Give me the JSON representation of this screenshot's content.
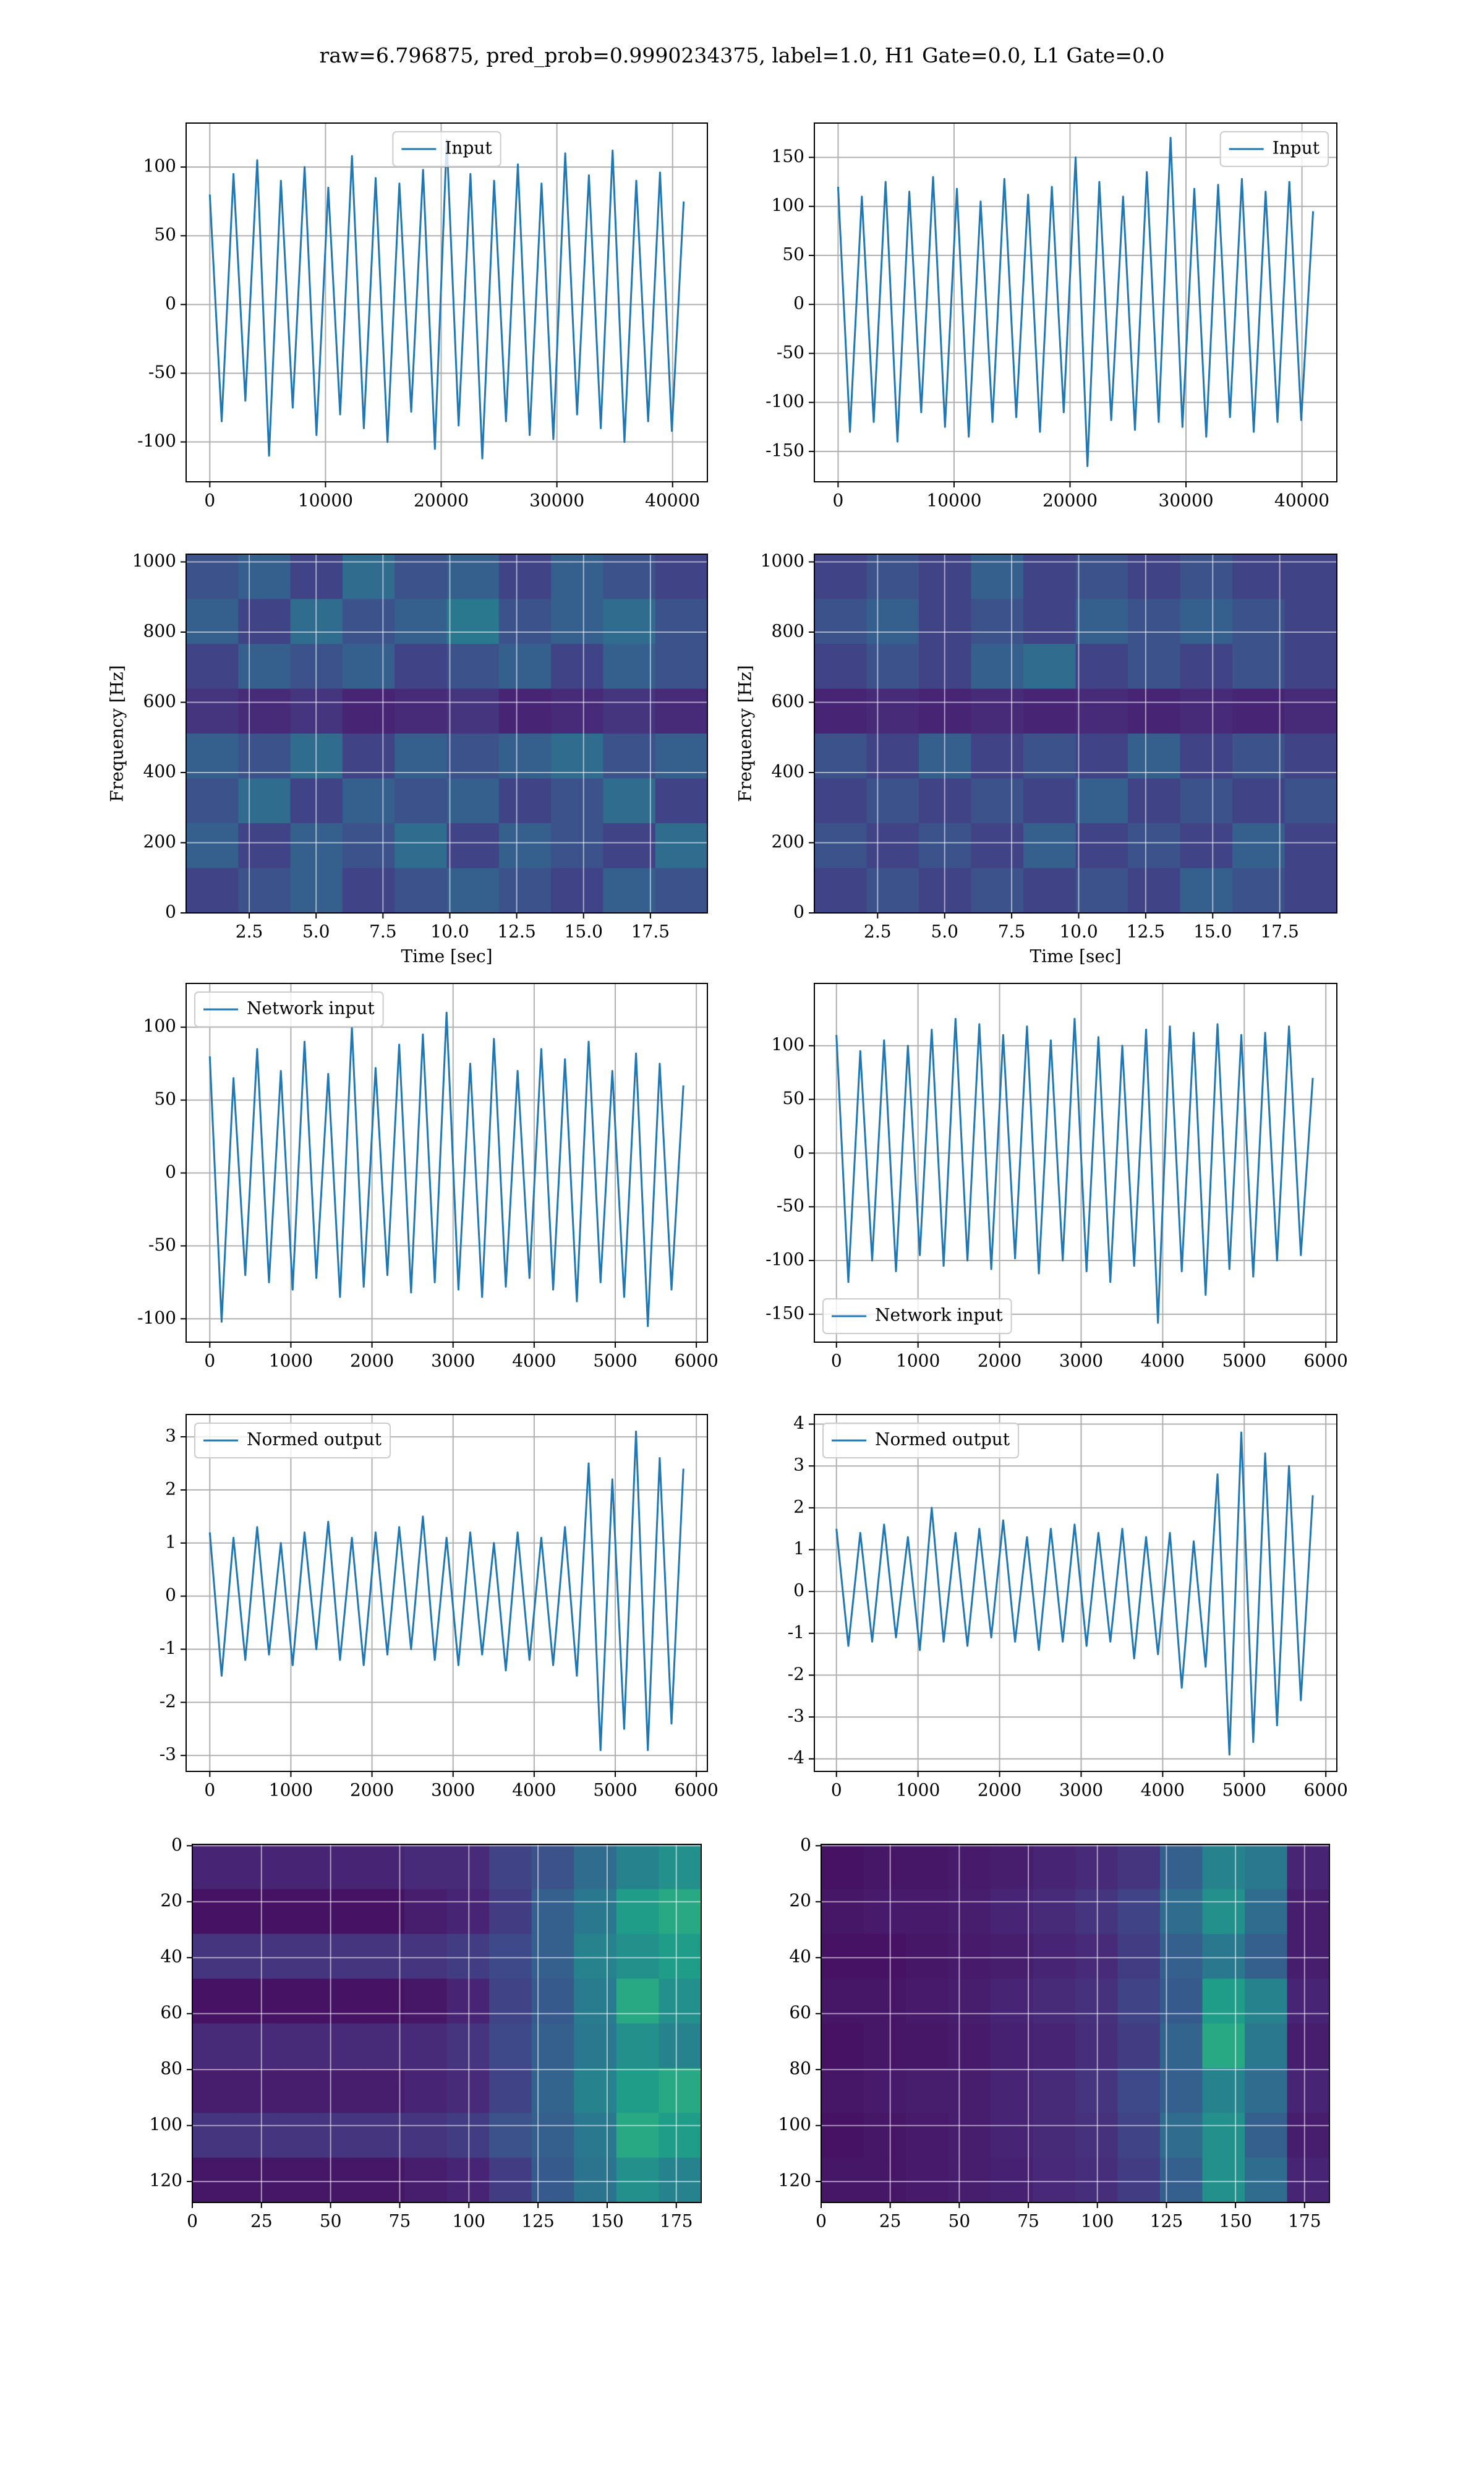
{
  "title": "raw=6.796875, pred_prob=0.9990234375, label=1.0, H1 Gate=0.0, L1 Gate=0.0",
  "chart_data": [
    {
      "type": "line",
      "legend": "upper center",
      "grid": true,
      "xlim": [
        -2048,
        43008
      ],
      "xticks": [
        0,
        10000,
        20000,
        30000,
        40000
      ],
      "ylim": [
        -129,
        132
      ],
      "yticks": [
        -100,
        -50,
        0,
        50,
        100
      ],
      "x": [
        0,
        1024,
        2048,
        3072,
        4096,
        5120,
        6144,
        7168,
        8192,
        9216,
        10240,
        11264,
        12288,
        13312,
        14336,
        15360,
        16384,
        17408,
        18432,
        19456,
        20480,
        21504,
        22528,
        23552,
        24576,
        25600,
        26624,
        27648,
        28672,
        29696,
        30720,
        31744,
        32768,
        33792,
        34816,
        35840,
        36864,
        37888,
        38912,
        39936,
        40960
      ],
      "series": [
        {
          "name": "Input",
          "color": "#1f77b4",
          "values": [
            80,
            -85,
            95,
            -70,
            105,
            -110,
            90,
            -75,
            100,
            -95,
            85,
            -80,
            108,
            -90,
            92,
            -100,
            88,
            -78,
            98,
            -105,
            120,
            -88,
            95,
            -112,
            90,
            -85,
            102,
            -95,
            88,
            -98,
            110,
            -80,
            94,
            -90,
            112,
            -100,
            90,
            -85,
            96,
            -92,
            75
          ]
        }
      ]
    },
    {
      "type": "line",
      "legend": "upper right",
      "grid": true,
      "xlim": [
        -2048,
        43008
      ],
      "xticks": [
        0,
        10000,
        20000,
        30000,
        40000
      ],
      "ylim": [
        -181,
        185
      ],
      "yticks": [
        -150,
        -100,
        -50,
        0,
        50,
        100,
        150
      ],
      "x": [
        0,
        1024,
        2048,
        3072,
        4096,
        5120,
        6144,
        7168,
        8192,
        9216,
        10240,
        11264,
        12288,
        13312,
        14336,
        15360,
        16384,
        17408,
        18432,
        19456,
        20480,
        21504,
        22528,
        23552,
        24576,
        25600,
        26624,
        27648,
        28672,
        29696,
        30720,
        31744,
        32768,
        33792,
        34816,
        35840,
        36864,
        37888,
        38912,
        39936,
        40960
      ],
      "series": [
        {
          "name": "Input",
          "color": "#1f77b4",
          "values": [
            120,
            -130,
            110,
            -120,
            125,
            -140,
            115,
            -110,
            130,
            -125,
            118,
            -135,
            105,
            -120,
            128,
            -115,
            112,
            -130,
            120,
            -110,
            150,
            -165,
            125,
            -118,
            110,
            -128,
            135,
            -120,
            170,
            -125,
            118,
            -135,
            122,
            -115,
            128,
            -130,
            115,
            -120,
            125,
            -118,
            95
          ]
        }
      ]
    },
    {
      "type": "heatmap",
      "cmap": "viridis",
      "grid": true,
      "xlabel": "Time [sec]",
      "ylabel": "Frequency [Hz]",
      "xlim": [
        0.14,
        19.63
      ],
      "xticks": [
        2.5,
        {
          "value": 5,
          "label": "5.0"
        },
        7.5,
        {
          "value": 10,
          "label": "10.0"
        },
        12.5,
        {
          "value": 15,
          "label": "15.0"
        },
        17.5
      ],
      "ylim": [
        0,
        1022
      ],
      "yticks": [
        0,
        200,
        400,
        600,
        800,
        1000
      ],
      "z": [
        [
          0.25,
          0.3,
          0.2,
          0.35,
          0.25,
          0.3,
          0.2,
          0.3,
          0.25,
          0.2
        ],
        [
          0.3,
          0.2,
          0.35,
          0.25,
          0.3,
          0.4,
          0.25,
          0.3,
          0.35,
          0.25
        ],
        [
          0.2,
          0.3,
          0.25,
          0.3,
          0.2,
          0.25,
          0.3,
          0.2,
          0.3,
          0.25
        ],
        [
          0.15,
          0.12,
          0.15,
          0.1,
          0.12,
          0.15,
          0.1,
          0.12,
          0.15,
          0.12
        ],
        [
          0.3,
          0.25,
          0.35,
          0.2,
          0.3,
          0.25,
          0.3,
          0.35,
          0.25,
          0.3
        ],
        [
          0.25,
          0.35,
          0.2,
          0.3,
          0.25,
          0.3,
          0.2,
          0.25,
          0.35,
          0.2
        ],
        [
          0.3,
          0.2,
          0.3,
          0.25,
          0.35,
          0.2,
          0.3,
          0.25,
          0.2,
          0.35
        ],
        [
          0.2,
          0.25,
          0.3,
          0.2,
          0.25,
          0.3,
          0.25,
          0.2,
          0.3,
          0.25
        ]
      ]
    },
    {
      "type": "heatmap",
      "cmap": "viridis",
      "grid": true,
      "xlabel": "Time [sec]",
      "ylabel": "Frequency [Hz]",
      "xlim": [
        0.14,
        19.63
      ],
      "xticks": [
        2.5,
        {
          "value": 5,
          "label": "5.0"
        },
        7.5,
        {
          "value": 10,
          "label": "10.0"
        },
        12.5,
        {
          "value": 15,
          "label": "15.0"
        },
        17.5
      ],
      "ylim": [
        0,
        1022
      ],
      "yticks": [
        0,
        200,
        400,
        600,
        800,
        1000
      ],
      "z": [
        [
          0.2,
          0.25,
          0.2,
          0.3,
          0.2,
          0.25,
          0.2,
          0.25,
          0.2,
          0.2
        ],
        [
          0.25,
          0.3,
          0.2,
          0.25,
          0.2,
          0.3,
          0.25,
          0.3,
          0.25,
          0.2
        ],
        [
          0.2,
          0.25,
          0.2,
          0.3,
          0.35,
          0.2,
          0.25,
          0.2,
          0.25,
          0.2
        ],
        [
          0.1,
          0.12,
          0.1,
          0.12,
          0.1,
          0.12,
          0.1,
          0.12,
          0.1,
          0.12
        ],
        [
          0.25,
          0.2,
          0.3,
          0.2,
          0.25,
          0.2,
          0.3,
          0.2,
          0.25,
          0.2
        ],
        [
          0.2,
          0.25,
          0.2,
          0.25,
          0.2,
          0.3,
          0.2,
          0.25,
          0.2,
          0.25
        ],
        [
          0.25,
          0.2,
          0.25,
          0.2,
          0.3,
          0.2,
          0.25,
          0.2,
          0.3,
          0.2
        ],
        [
          0.2,
          0.25,
          0.2,
          0.25,
          0.2,
          0.25,
          0.2,
          0.3,
          0.25,
          0.2
        ]
      ]
    },
    {
      "type": "line",
      "legend": "upper left",
      "grid": true,
      "xlim": [
        -292,
        6136
      ],
      "xticks": [
        0,
        1000,
        2000,
        3000,
        4000,
        5000,
        6000
      ],
      "ylim": [
        -116,
        130
      ],
      "yticks": [
        -100,
        -50,
        0,
        50,
        100
      ],
      "x": [
        0,
        146,
        292,
        438,
        584,
        730,
        876,
        1022,
        1168,
        1314,
        1460,
        1606,
        1752,
        1898,
        2044,
        2190,
        2336,
        2482,
        2628,
        2774,
        2920,
        3066,
        3212,
        3358,
        3504,
        3650,
        3796,
        3942,
        4088,
        4234,
        4380,
        4526,
        4672,
        4818,
        4964,
        5110,
        5256,
        5402,
        5548,
        5694,
        5840
      ],
      "series": [
        {
          "name": "Network input",
          "color": "#1f77b4",
          "values": [
            80,
            -102,
            65,
            -70,
            85,
            -75,
            70,
            -80,
            90,
            -72,
            68,
            -85,
            100,
            -78,
            72,
            -70,
            88,
            -82,
            95,
            -75,
            110,
            -80,
            75,
            -85,
            92,
            -78,
            70,
            -72,
            85,
            -80,
            78,
            -88,
            90,
            -75,
            70,
            -85,
            82,
            -105,
            75,
            -80,
            60
          ]
        }
      ]
    },
    {
      "type": "line",
      "legend": "lower left",
      "grid": true,
      "xlim": [
        -271,
        6135
      ],
      "xticks": [
        0,
        1000,
        2000,
        3000,
        4000,
        5000,
        6000
      ],
      "ylim": [
        -176,
        158
      ],
      "yticks": [
        -150,
        -100,
        -50,
        0,
        50,
        100
      ],
      "x": [
        0,
        146,
        292,
        438,
        584,
        730,
        876,
        1022,
        1168,
        1314,
        1460,
        1606,
        1752,
        1898,
        2044,
        2190,
        2336,
        2482,
        2628,
        2774,
        2920,
        3066,
        3212,
        3358,
        3504,
        3650,
        3796,
        3942,
        4088,
        4234,
        4380,
        4526,
        4672,
        4818,
        4964,
        5110,
        5256,
        5402,
        5548,
        5694,
        5840
      ],
      "series": [
        {
          "name": "Network input",
          "color": "#1f77b4",
          "values": [
            110,
            -120,
            95,
            -100,
            105,
            -110,
            100,
            -95,
            115,
            -105,
            125,
            -100,
            120,
            -108,
            110,
            -98,
            118,
            -112,
            105,
            -100,
            125,
            -110,
            108,
            -120,
            100,
            -105,
            115,
            -158,
            118,
            -110,
            112,
            -132,
            120,
            -108,
            110,
            -115,
            112,
            -100,
            118,
            -95,
            70
          ]
        }
      ]
    },
    {
      "type": "line",
      "legend": "upper left",
      "grid": true,
      "xlim": [
        -292,
        6136
      ],
      "xticks": [
        0,
        1000,
        2000,
        3000,
        4000,
        5000,
        6000
      ],
      "ylim": [
        -3.3,
        3.42
      ],
      "yticks": [
        -3,
        -2,
        -1,
        0,
        1,
        2,
        3
      ],
      "x": [
        0,
        146,
        292,
        438,
        584,
        730,
        876,
        1022,
        1168,
        1314,
        1460,
        1606,
        1752,
        1898,
        2044,
        2190,
        2336,
        2482,
        2628,
        2774,
        2920,
        3066,
        3212,
        3358,
        3504,
        3650,
        3796,
        3942,
        4088,
        4234,
        4380,
        4526,
        4672,
        4818,
        4964,
        5110,
        5256,
        5402,
        5548,
        5694,
        5840
      ],
      "series": [
        {
          "name": "Normed output",
          "color": "#1f77b4",
          "values": [
            1.2,
            -1.5,
            1.1,
            -1.2,
            1.3,
            -1.1,
            1.0,
            -1.3,
            1.2,
            -1.0,
            1.4,
            -1.2,
            1.1,
            -1.3,
            1.2,
            -1.1,
            1.3,
            -1.0,
            1.5,
            -1.2,
            1.1,
            -1.3,
            1.2,
            -1.1,
            1.0,
            -1.4,
            1.2,
            -1.2,
            1.1,
            -1.3,
            1.3,
            -1.5,
            2.5,
            -2.9,
            2.2,
            -2.5,
            3.1,
            -2.9,
            2.6,
            -2.4,
            2.4
          ]
        }
      ]
    },
    {
      "type": "line",
      "legend": "upper left",
      "grid": true,
      "xlim": [
        -271,
        6135
      ],
      "xticks": [
        0,
        1000,
        2000,
        3000,
        4000,
        5000,
        6000
      ],
      "ylim": [
        -4.3,
        4.23
      ],
      "yticks": [
        -4,
        -3,
        -2,
        -1,
        0,
        1,
        2,
        3,
        4
      ],
      "x": [
        0,
        146,
        292,
        438,
        584,
        730,
        876,
        1022,
        1168,
        1314,
        1460,
        1606,
        1752,
        1898,
        2044,
        2190,
        2336,
        2482,
        2628,
        2774,
        2920,
        3066,
        3212,
        3358,
        3504,
        3650,
        3796,
        3942,
        4088,
        4234,
        4380,
        4526,
        4672,
        4818,
        4964,
        5110,
        5256,
        5402,
        5548,
        5694,
        5840
      ],
      "series": [
        {
          "name": "Normed output",
          "color": "#1f77b4",
          "values": [
            1.5,
            -1.3,
            1.4,
            -1.2,
            1.6,
            -1.1,
            1.3,
            -1.4,
            2.0,
            -1.2,
            1.4,
            -1.3,
            1.5,
            -1.1,
            1.7,
            -1.2,
            1.3,
            -1.4,
            1.5,
            -1.2,
            1.6,
            -1.3,
            1.4,
            -1.2,
            1.5,
            -1.6,
            1.3,
            -1.5,
            1.4,
            -2.3,
            1.2,
            -1.8,
            2.8,
            -3.9,
            3.8,
            -3.6,
            3.3,
            -3.2,
            3.0,
            -2.6,
            2.3
          ]
        }
      ]
    },
    {
      "type": "heatmap",
      "cmap": "viridis",
      "grid": true,
      "xlim": [
        0,
        184
      ],
      "xticks": [
        0,
        25,
        50,
        75,
        100,
        125,
        150,
        175
      ],
      "ylim": [
        127.5,
        -0.5
      ],
      "yticks": [
        0,
        20,
        40,
        60,
        80,
        100,
        120
      ],
      "z": [
        [
          0.1,
          0.1,
          0.1,
          0.1,
          0.1,
          0.12,
          0.12,
          0.2,
          0.25,
          0.35,
          0.45,
          0.5
        ],
        [
          0.05,
          0.05,
          0.05,
          0.05,
          0.05,
          0.08,
          0.1,
          0.18,
          0.3,
          0.4,
          0.55,
          0.6
        ],
        [
          0.15,
          0.15,
          0.15,
          0.15,
          0.15,
          0.15,
          0.18,
          0.22,
          0.3,
          0.45,
          0.5,
          0.55
        ],
        [
          0.05,
          0.05,
          0.05,
          0.05,
          0.05,
          0.06,
          0.1,
          0.2,
          0.28,
          0.42,
          0.6,
          0.5
        ],
        [
          0.12,
          0.12,
          0.12,
          0.12,
          0.12,
          0.12,
          0.15,
          0.22,
          0.3,
          0.4,
          0.5,
          0.45
        ],
        [
          0.08,
          0.08,
          0.08,
          0.08,
          0.08,
          0.1,
          0.12,
          0.2,
          0.32,
          0.45,
          0.55,
          0.6
        ],
        [
          0.15,
          0.15,
          0.15,
          0.15,
          0.15,
          0.15,
          0.18,
          0.25,
          0.3,
          0.4,
          0.6,
          0.55
        ],
        [
          0.06,
          0.06,
          0.06,
          0.06,
          0.06,
          0.08,
          0.1,
          0.18,
          0.28,
          0.38,
          0.5,
          0.45
        ]
      ]
    },
    {
      "type": "heatmap",
      "cmap": "viridis",
      "grid": true,
      "xlim": [
        0,
        184
      ],
      "xticks": [
        0,
        25,
        50,
        75,
        100,
        125,
        150,
        175
      ],
      "ylim": [
        127.5,
        -0.5
      ],
      "yticks": [
        0,
        20,
        40,
        60,
        80,
        100,
        120
      ],
      "z": [
        [
          0.05,
          0.06,
          0.06,
          0.07,
          0.08,
          0.1,
          0.12,
          0.15,
          0.3,
          0.45,
          0.4,
          0.1
        ],
        [
          0.06,
          0.07,
          0.07,
          0.08,
          0.1,
          0.12,
          0.15,
          0.2,
          0.35,
          0.5,
          0.35,
          0.08
        ],
        [
          0.05,
          0.05,
          0.06,
          0.07,
          0.08,
          0.1,
          0.12,
          0.18,
          0.3,
          0.4,
          0.3,
          0.08
        ],
        [
          0.06,
          0.06,
          0.07,
          0.08,
          0.1,
          0.12,
          0.14,
          0.2,
          0.28,
          0.55,
          0.45,
          0.1
        ],
        [
          0.05,
          0.06,
          0.06,
          0.07,
          0.09,
          0.1,
          0.13,
          0.18,
          0.32,
          0.6,
          0.4,
          0.08
        ],
        [
          0.06,
          0.07,
          0.08,
          0.08,
          0.1,
          0.12,
          0.15,
          0.22,
          0.3,
          0.45,
          0.35,
          0.1
        ],
        [
          0.05,
          0.06,
          0.07,
          0.08,
          0.1,
          0.12,
          0.14,
          0.2,
          0.35,
          0.5,
          0.3,
          0.08
        ],
        [
          0.06,
          0.06,
          0.07,
          0.08,
          0.09,
          0.11,
          0.13,
          0.18,
          0.3,
          0.5,
          0.35,
          0.1
        ]
      ]
    }
  ]
}
